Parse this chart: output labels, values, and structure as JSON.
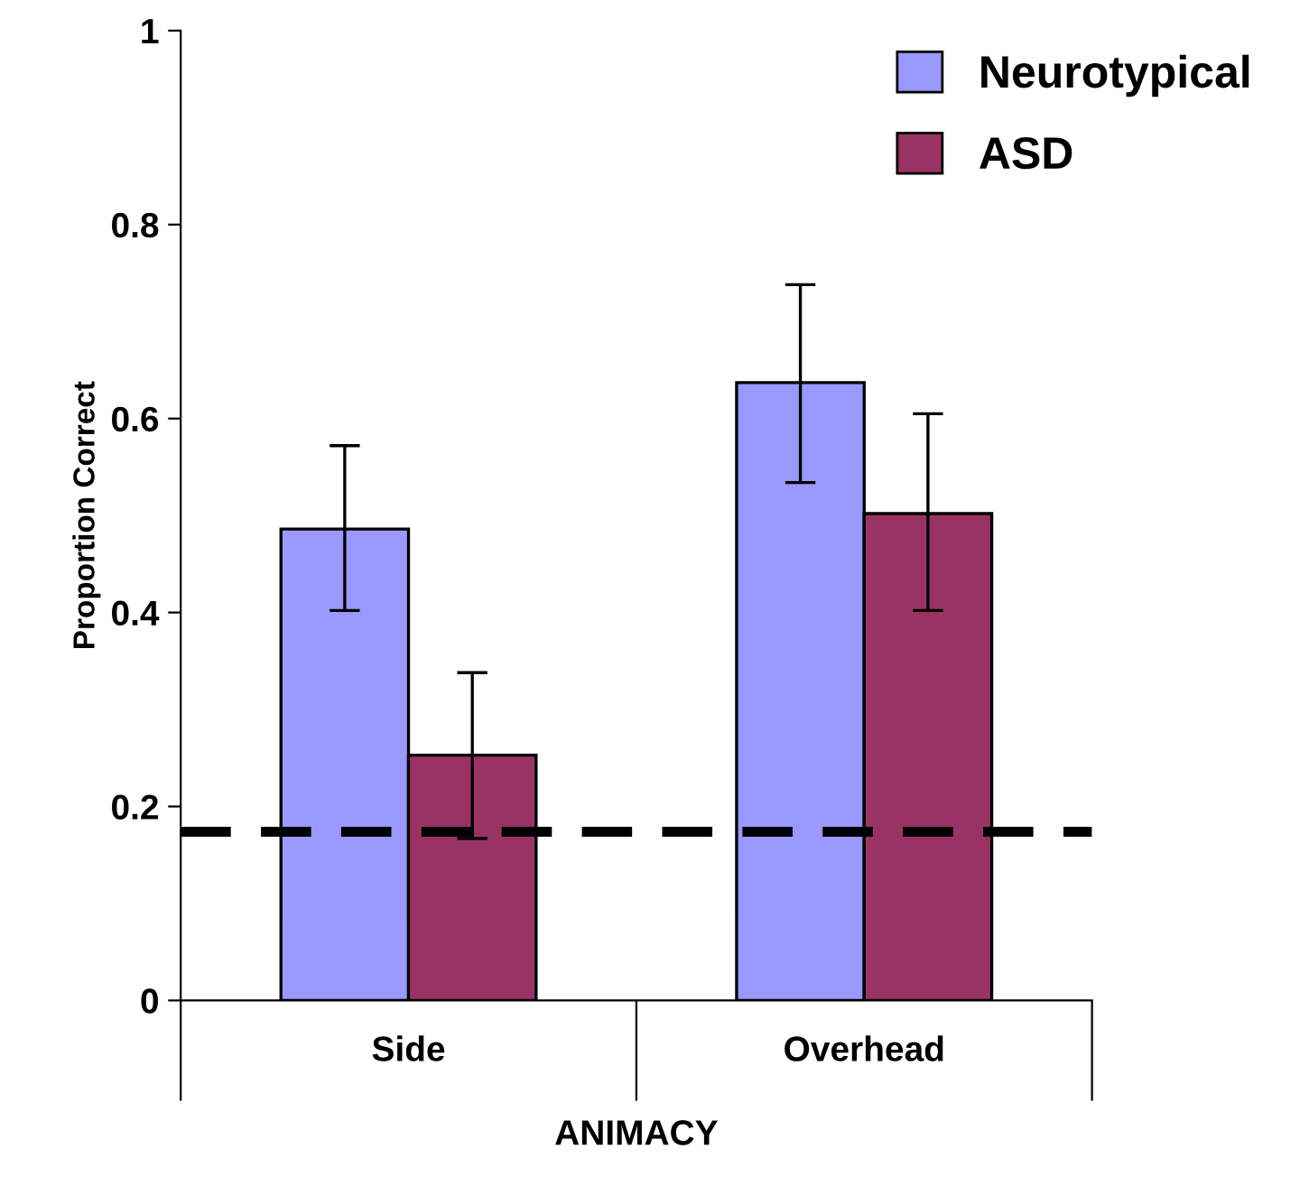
{
  "chart_data": {
    "type": "bar",
    "xlabel": "ANIMACY",
    "ylabel": "Proportion Correct",
    "categories": [
      "Side",
      "Overhead"
    ],
    "series": [
      {
        "name": "Neurotypical",
        "color": "#9999ff",
        "values": [
          0.486,
          0.637
        ],
        "errors": [
          [
            0.402,
            0.572
          ],
          [
            0.534,
            0.738
          ]
        ]
      },
      {
        "name": "ASD",
        "color": "#993366",
        "values": [
          0.253,
          0.502
        ],
        "errors": [
          [
            0.167,
            0.338
          ],
          [
            0.402,
            0.605
          ]
        ]
      }
    ],
    "ylim": [
      0,
      1
    ],
    "yticks": [
      0,
      0.2,
      0.4,
      0.6,
      0.8,
      1
    ],
    "ref_lines": [
      {
        "axis": "y",
        "value": 0.174,
        "color": "#000000",
        "line_style": "dashed"
      }
    ],
    "grid": false,
    "legend": "top right"
  }
}
